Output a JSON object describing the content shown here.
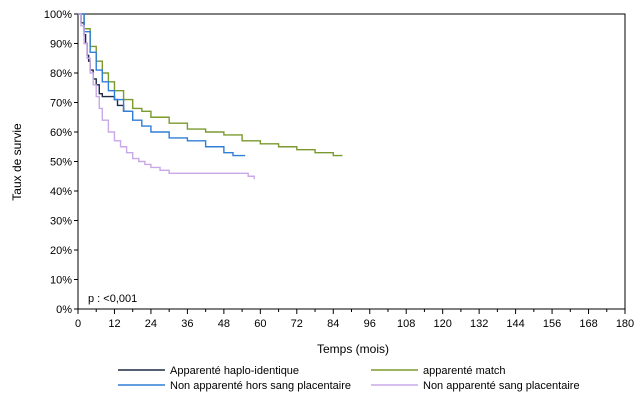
{
  "chart_data": {
    "type": "line",
    "subtype": "kaplan-meier survival curves",
    "title": "",
    "xlabel": "Temps (mois)",
    "ylabel": "Taux de survie",
    "xlim": [
      0,
      180
    ],
    "ylim": [
      0,
      100
    ],
    "x_ticks": [
      0,
      12,
      24,
      36,
      48,
      60,
      72,
      84,
      96,
      108,
      120,
      132,
      144,
      156,
      168,
      180
    ],
    "y_ticks": [
      0,
      10,
      20,
      30,
      40,
      50,
      60,
      70,
      80,
      90,
      100
    ],
    "x_tick_labels": [
      "0",
      "12",
      "24",
      "36",
      "48",
      "60",
      "72",
      "84",
      "96",
      "108",
      "120",
      "132",
      "144",
      "156",
      "168",
      "180"
    ],
    "y_tick_labels": [
      "0%",
      "10%",
      "20%",
      "30%",
      "40%",
      "50%",
      "60%",
      "70%",
      "80%",
      "90%",
      "100%"
    ],
    "grid": false,
    "annotation": "p : <0,001",
    "legend_position": "bottom",
    "series": [
      {
        "name": "Apparenté haplo-identique",
        "color": "#1f2a44",
        "x": [
          0,
          1,
          2,
          2.5,
          3,
          3.5,
          4,
          5,
          6,
          7,
          8,
          10,
          12,
          13,
          15,
          17
        ],
        "y": [
          100,
          97,
          93,
          90,
          86,
          84,
          81,
          78,
          76,
          73,
          72,
          72,
          71,
          69,
          67,
          67
        ]
      },
      {
        "name": "apparenté match",
        "color": "#7a9a2e",
        "x": [
          0,
          2,
          4,
          6,
          8,
          10,
          12,
          15,
          18,
          21,
          24,
          30,
          36,
          42,
          48,
          54,
          60,
          66,
          72,
          78,
          84,
          87
        ],
        "y": [
          100,
          95,
          89,
          84,
          80,
          77,
          74,
          71,
          68,
          67,
          65,
          63,
          61,
          60,
          59,
          57,
          56,
          55,
          54,
          53,
          52,
          52
        ]
      },
      {
        "name": "Non apparenté hors sang placentaire",
        "color": "#2f7fd6",
        "x": [
          0,
          2,
          4,
          6,
          8,
          10,
          12,
          15,
          18,
          21,
          24,
          30,
          36,
          42,
          48,
          51,
          55
        ],
        "y": [
          100,
          94,
          87,
          81,
          77,
          74,
          71,
          67,
          64,
          62,
          60,
          58,
          57,
          55,
          53,
          52,
          52
        ]
      },
      {
        "name": "Non apparenté sang placentaire",
        "color": "#c9a8e8",
        "x": [
          0,
          1,
          2,
          3,
          4,
          5,
          6,
          7,
          8,
          10,
          12,
          14,
          16,
          18,
          20,
          22,
          24,
          27,
          30,
          36,
          42,
          48,
          54,
          56,
          58
        ],
        "y": [
          100,
          96,
          90,
          85,
          80,
          76,
          72,
          68,
          64,
          60,
          57,
          55,
          53,
          51,
          50,
          49,
          48,
          47,
          46,
          46,
          46,
          46,
          46,
          45,
          44
        ]
      }
    ]
  }
}
